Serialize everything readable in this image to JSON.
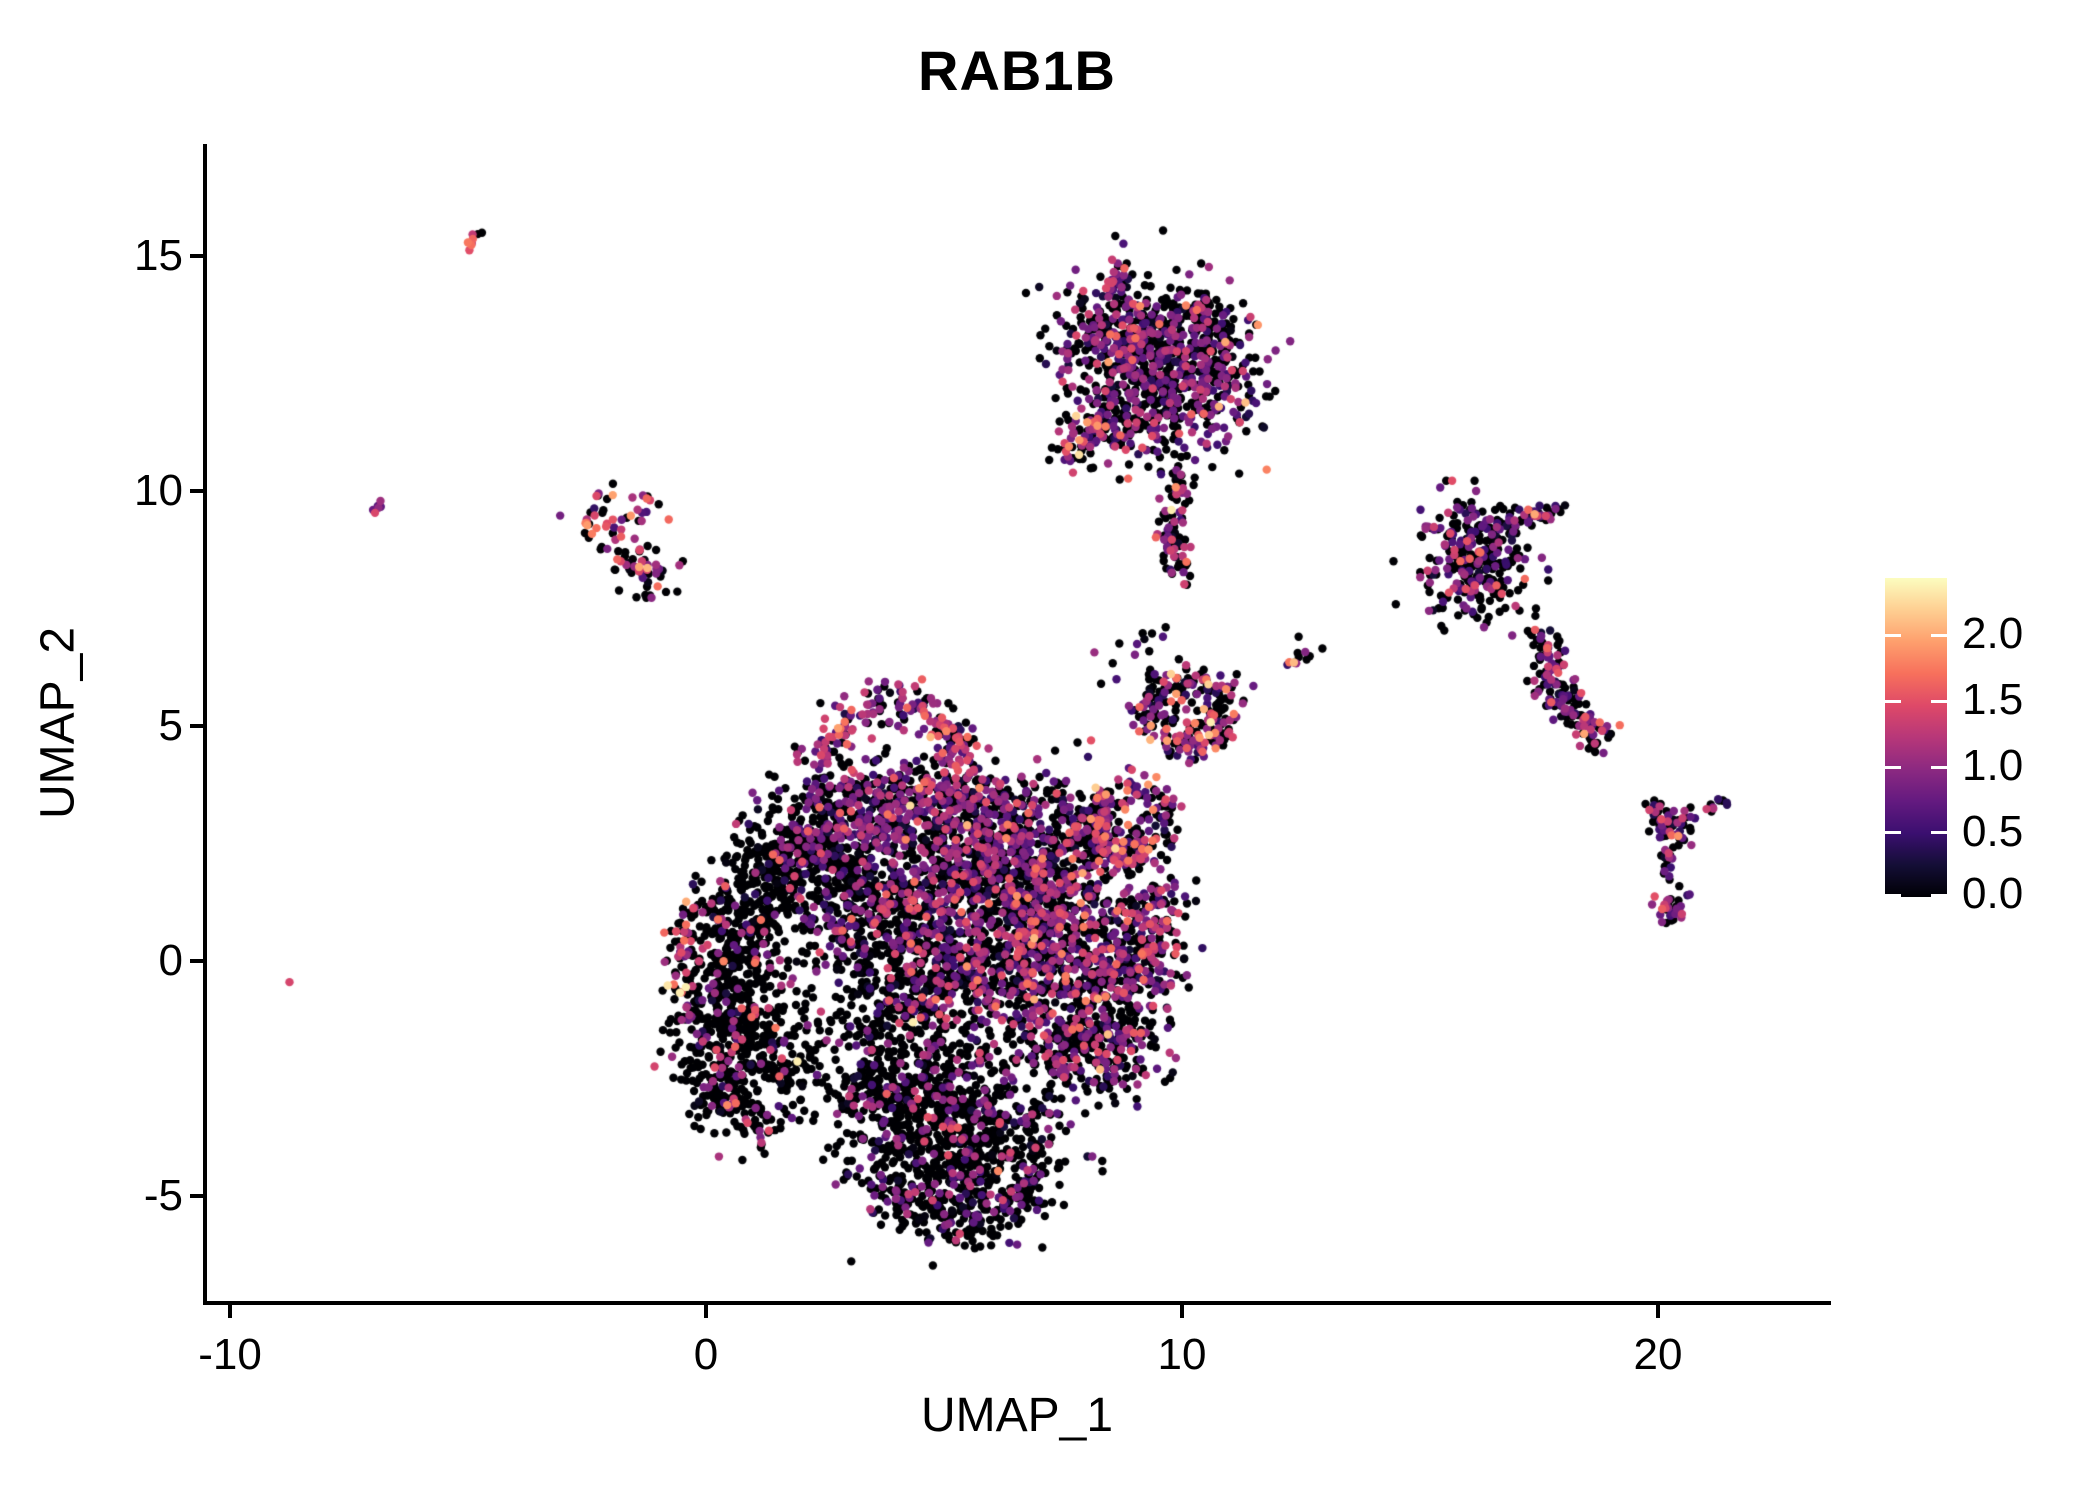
{
  "title": "RAB1B",
  "axes": {
    "x_label": "UMAP_1",
    "y_label": "UMAP_2",
    "x_ticks": [
      "-10",
      "0",
      "10",
      "20"
    ],
    "y_ticks": [
      "15",
      "10",
      "5",
      "0",
      "-5"
    ]
  },
  "legend": {
    "labels": [
      "2.0",
      "1.5",
      "1.0",
      "0.5",
      "0.0"
    ],
    "values": [
      2.0,
      1.5,
      1.0,
      0.5,
      0.0
    ],
    "vmax": 2.43,
    "colormap": "magma",
    "colormap_stops": [
      "#000004",
      "#140e36",
      "#3b0f70",
      "#641a80",
      "#8c2981",
      "#b73779",
      "#de4968",
      "#f7705c",
      "#fe9f6d",
      "#fecf92",
      "#fcfdbf"
    ]
  },
  "chart_data": {
    "type": "scatter",
    "title": "RAB1B",
    "xlabel": "UMAP_1",
    "ylabel": "UMAP_2",
    "xlim": [
      -10.5,
      23.6
    ],
    "ylim": [
      -7.3,
      17.4
    ],
    "x_ticks": [
      -10,
      0,
      10,
      20
    ],
    "y_ticks": [
      -5,
      0,
      5,
      10,
      15
    ],
    "grid": false,
    "legend_position": "right",
    "color_variable": "RAB1B expression",
    "color_range": [
      0,
      2.43
    ],
    "colormap": "magma",
    "point_radius_px": 4.2,
    "seed": 1337,
    "clusters": [
      {
        "name": "left-lobe-core",
        "t": "g",
        "x": 0.35,
        "y": -0.9,
        "sx": 0.5,
        "sy": 1.15,
        "n": 300,
        "p0": 0.87,
        "mu": 0.9,
        "sd": 0.5
      },
      {
        "name": "left-lobe-lower",
        "t": "g",
        "x": 1.15,
        "y": -2.1,
        "sx": 0.65,
        "sy": 0.8,
        "n": 270,
        "p0": 0.87,
        "mu": 0.9,
        "sd": 0.5
      },
      {
        "name": "left-lobe-upper",
        "t": "g",
        "x": 0.8,
        "y": 0.7,
        "sx": 0.55,
        "sy": 0.85,
        "n": 210,
        "p0": 0.83,
        "mu": 0.95,
        "sd": 0.5
      },
      {
        "name": "left-shoulder",
        "t": "g",
        "x": 1.6,
        "y": 1.9,
        "sx": 0.6,
        "sy": 0.55,
        "n": 150,
        "p0": 0.78,
        "mu": 0.85,
        "sd": 0.45
      },
      {
        "name": "left-rim",
        "t": "p",
        "pts": [
          [
            -0.15,
            1.3
          ],
          [
            -0.5,
            0.1
          ],
          [
            -0.35,
            -1.3
          ],
          [
            0.2,
            -2.7
          ],
          [
            1.0,
            -3.6
          ]
        ],
        "j": 0.2,
        "n": 120,
        "p0": 0.45,
        "mu": 1.15,
        "sd": 0.45
      },
      {
        "name": "band-left",
        "t": "g",
        "x": 2.7,
        "y": 3.1,
        "sx": 0.8,
        "sy": 0.6,
        "n": 230,
        "p0": 0.5,
        "mu": 0.8,
        "sd": 0.4
      },
      {
        "name": "band-mid",
        "t": "g",
        "x": 4.3,
        "y": 3.3,
        "sx": 0.9,
        "sy": 0.55,
        "n": 270,
        "p0": 0.45,
        "mu": 0.85,
        "sd": 0.42
      },
      {
        "name": "band-right",
        "t": "g",
        "x": 5.9,
        "y": 3.1,
        "sx": 0.8,
        "sy": 0.6,
        "n": 230,
        "p0": 0.5,
        "mu": 0.85,
        "sd": 0.42
      },
      {
        "name": "dark-patch",
        "t": "g",
        "x": 2.3,
        "y": 2.2,
        "sx": 0.55,
        "sy": 0.5,
        "n": 140,
        "p0": 0.82,
        "mu": 0.8,
        "sd": 0.4
      },
      {
        "name": "top-arc",
        "t": "p",
        "pts": [
          [
            2.3,
            4.4
          ],
          [
            2.9,
            5.1
          ],
          [
            3.8,
            5.5
          ],
          [
            4.7,
            5.3
          ],
          [
            5.25,
            4.7
          ],
          [
            5.3,
            4.15
          ]
        ],
        "j": 0.22,
        "n": 180,
        "p0": 0.3,
        "mu": 1.0,
        "sd": 0.45
      },
      {
        "name": "core-1",
        "t": "g",
        "x": 3.4,
        "y": 0.9,
        "sx": 0.7,
        "sy": 0.9,
        "n": 300,
        "p0": 0.66,
        "mu": 0.8,
        "sd": 0.45
      },
      {
        "name": "core-2",
        "t": "g",
        "x": 4.8,
        "y": 1.6,
        "sx": 0.8,
        "sy": 0.8,
        "n": 300,
        "p0": 0.55,
        "mu": 0.85,
        "sd": 0.45
      },
      {
        "name": "core-3",
        "t": "g",
        "x": 6.2,
        "y": 1.95,
        "sx": 0.7,
        "sy": 0.9,
        "n": 300,
        "p0": 0.5,
        "mu": 0.85,
        "sd": 0.45
      },
      {
        "name": "core-4",
        "t": "g",
        "x": 4.3,
        "y": -0.7,
        "sx": 0.9,
        "sy": 0.8,
        "n": 300,
        "p0": 0.7,
        "mu": 0.8,
        "sd": 0.45
      },
      {
        "name": "core-5",
        "t": "g",
        "x": 5.8,
        "y": -0.3,
        "sx": 0.8,
        "sy": 0.9,
        "n": 300,
        "p0": 0.56,
        "mu": 0.85,
        "sd": 0.45
      },
      {
        "name": "core-6",
        "t": "g",
        "x": 6.95,
        "y": 0.6,
        "sx": 0.55,
        "sy": 1.0,
        "n": 270,
        "p0": 0.45,
        "mu": 0.9,
        "sd": 0.45
      },
      {
        "name": "core-7",
        "t": "g",
        "x": 7.45,
        "y": 2.2,
        "sx": 0.5,
        "sy": 0.8,
        "n": 210,
        "p0": 0.5,
        "mu": 0.9,
        "sd": 0.45
      },
      {
        "name": "bottom-1",
        "t": "g",
        "x": 4.6,
        "y": -3.3,
        "sx": 1.0,
        "sy": 0.7,
        "n": 300,
        "p0": 0.79,
        "mu": 0.8,
        "sd": 0.45
      },
      {
        "name": "bottom-2",
        "t": "g",
        "x": 5.9,
        "y": -3.6,
        "sx": 0.9,
        "sy": 0.7,
        "n": 280,
        "p0": 0.73,
        "mu": 0.8,
        "sd": 0.45
      },
      {
        "name": "bottom-3",
        "t": "g",
        "x": 5.2,
        "y": -4.8,
        "sx": 0.9,
        "sy": 0.6,
        "n": 270,
        "p0": 0.8,
        "mu": 0.75,
        "sd": 0.45
      },
      {
        "name": "bottom-4",
        "t": "g",
        "x": 3.6,
        "y": -2.5,
        "sx": 0.6,
        "sy": 0.6,
        "n": 150,
        "p0": 0.83,
        "mu": 0.8,
        "sd": 0.4
      },
      {
        "name": "bottom-rim",
        "t": "p",
        "pts": [
          [
            3.3,
            -4.2
          ],
          [
            4.2,
            -5.3
          ],
          [
            5.4,
            -5.75
          ],
          [
            6.6,
            -5.2
          ],
          [
            7.0,
            -4.3
          ]
        ],
        "j": 0.2,
        "n": 130,
        "p0": 0.72,
        "mu": 0.7,
        "sd": 0.4
      },
      {
        "name": "right-lobe-1",
        "t": "g",
        "x": 7.8,
        "y": -0.9,
        "sx": 0.7,
        "sy": 0.9,
        "n": 280,
        "p0": 0.6,
        "mu": 0.85,
        "sd": 0.45
      },
      {
        "name": "right-lobe-2",
        "t": "g",
        "x": 8.7,
        "y": -0.2,
        "sx": 0.6,
        "sy": 0.8,
        "n": 230,
        "p0": 0.5,
        "mu": 0.9,
        "sd": 0.45
      },
      {
        "name": "right-lobe-3",
        "t": "g",
        "x": 8.2,
        "y": -2.0,
        "sx": 0.7,
        "sy": 0.55,
        "n": 180,
        "p0": 0.66,
        "mu": 0.8,
        "sd": 0.45
      },
      {
        "name": "right-lobe-4",
        "t": "g",
        "x": 9.35,
        "y": 0.8,
        "sx": 0.45,
        "sy": 0.6,
        "n": 140,
        "p0": 0.52,
        "mu": 0.9,
        "sd": 0.45
      },
      {
        "name": "knob-ring",
        "t": "r",
        "x": 8.9,
        "y": 3.0,
        "r": 0.75,
        "w": 0.45,
        "n": 210,
        "p0": 0.38,
        "mu": 1.05,
        "sd": 0.5
      },
      {
        "name": "knob-inner",
        "t": "g",
        "x": 8.5,
        "y": 2.4,
        "sx": 0.4,
        "sy": 0.4,
        "n": 50,
        "p0": 0.5,
        "mu": 0.9,
        "sd": 0.45
      },
      {
        "name": "ec-ring",
        "t": "r",
        "x": 10.1,
        "y": 5.3,
        "r": 0.8,
        "w": 0.45,
        "n": 210,
        "p0": 0.42,
        "mu": 1.1,
        "sd": 0.55
      },
      {
        "name": "ec-inner",
        "t": "g",
        "x": 10.1,
        "y": 5.3,
        "sx": 0.4,
        "sy": 0.35,
        "n": 30,
        "p0": 0.55,
        "mu": 0.9,
        "sd": 0.5
      },
      {
        "name": "top-main",
        "t": "g",
        "x": 9.4,
        "y": 12.9,
        "sx": 1.05,
        "sy": 0.75,
        "n": 360,
        "p0": 0.52,
        "mu": 0.8,
        "sd": 0.42
      },
      {
        "name": "top-nw",
        "t": "g",
        "x": 8.6,
        "y": 13.55,
        "sx": 0.6,
        "sy": 0.5,
        "n": 160,
        "p0": 0.45,
        "mu": 0.85,
        "sd": 0.45
      },
      {
        "name": "top-se",
        "t": "g",
        "x": 10.35,
        "y": 12.2,
        "sx": 0.7,
        "sy": 0.7,
        "n": 200,
        "p0": 0.5,
        "mu": 0.8,
        "sd": 0.42
      },
      {
        "name": "top-s",
        "t": "g",
        "x": 9.0,
        "y": 11.6,
        "sx": 0.7,
        "sy": 0.6,
        "n": 180,
        "p0": 0.6,
        "mu": 0.8,
        "sd": 0.42
      },
      {
        "name": "top-ne",
        "t": "g",
        "x": 10.25,
        "y": 13.5,
        "sx": 0.5,
        "sy": 0.45,
        "n": 110,
        "p0": 0.55,
        "mu": 0.8,
        "sd": 0.42
      },
      {
        "name": "top-arm",
        "t": "p",
        "pts": [
          [
            7.45,
            10.75
          ],
          [
            7.95,
            11.15
          ],
          [
            8.5,
            11.65
          ]
        ],
        "j": 0.18,
        "n": 70,
        "p0": 0.35,
        "mu": 1.05,
        "sd": 0.5
      },
      {
        "name": "top-spur",
        "t": "p",
        "pts": [
          [
            8.55,
            14.2
          ],
          [
            8.75,
            14.9
          ]
        ],
        "j": 0.1,
        "n": 20,
        "p0": 0.6,
        "mu": 0.9,
        "sd": 0.45
      },
      {
        "name": "top-tail",
        "t": "p",
        "pts": [
          [
            10.0,
            10.4
          ],
          [
            9.85,
            9.6
          ],
          [
            9.8,
            8.8
          ],
          [
            9.9,
            8.15
          ]
        ],
        "j": 0.16,
        "n": 85,
        "p0": 0.55,
        "mu": 0.95,
        "sd": 0.5
      },
      {
        "name": "right1-main",
        "t": "g",
        "x": 16.0,
        "y": 8.9,
        "sx": 0.55,
        "sy": 0.5,
        "n": 150,
        "p0": 0.55,
        "mu": 0.8,
        "sd": 0.42
      },
      {
        "name": "right1-low",
        "t": "g",
        "x": 16.55,
        "y": 8.3,
        "sx": 0.45,
        "sy": 0.5,
        "n": 95,
        "p0": 0.6,
        "mu": 0.8,
        "sd": 0.42
      },
      {
        "name": "right1-arm",
        "t": "p",
        "pts": [
          [
            16.6,
            9.2
          ],
          [
            17.3,
            9.5
          ],
          [
            17.95,
            9.6
          ]
        ],
        "j": 0.12,
        "n": 55,
        "p0": 0.45,
        "mu": 0.9,
        "sd": 0.45
      },
      {
        "name": "right1-tail",
        "t": "g",
        "x": 16.1,
        "y": 7.85,
        "sx": 0.3,
        "sy": 0.3,
        "n": 32,
        "p0": 0.7,
        "mu": 0.8,
        "sd": 0.4
      },
      {
        "name": "right1-sparse",
        "t": "g",
        "x": 15.7,
        "y": 7.5,
        "sx": 0.35,
        "sy": 0.3,
        "n": 12,
        "p0": 0.75,
        "mu": 1.2,
        "sd": 0.5
      },
      {
        "name": "right2-scurve",
        "t": "p",
        "pts": [
          [
            17.5,
            6.85
          ],
          [
            17.8,
            6.35
          ],
          [
            17.65,
            5.85
          ],
          [
            18.1,
            5.4
          ],
          [
            18.6,
            5.0
          ],
          [
            18.9,
            4.65
          ]
        ],
        "j": 0.18,
        "n": 160,
        "p0": 0.4,
        "mu": 0.9,
        "sd": 0.45
      },
      {
        "name": "y-center",
        "t": "g",
        "x": 20.3,
        "y": 2.85,
        "sx": 0.25,
        "sy": 0.2,
        "n": 40,
        "p0": 0.45,
        "mu": 0.85,
        "sd": 0.45
      },
      {
        "name": "y-arm-left",
        "t": "p",
        "pts": [
          [
            19.85,
            3.25
          ],
          [
            20.1,
            3.0
          ]
        ],
        "j": 0.08,
        "n": 12,
        "p0": 0.5,
        "mu": 0.9,
        "sd": 0.45
      },
      {
        "name": "y-arm-right",
        "t": "p",
        "pts": [
          [
            20.65,
            3.15
          ],
          [
            20.45,
            2.95
          ]
        ],
        "j": 0.07,
        "n": 10,
        "p0": 0.5,
        "mu": 1.0,
        "sd": 0.5
      },
      {
        "name": "y-chain",
        "t": "p",
        "pts": [
          [
            20.25,
            2.5
          ],
          [
            20.2,
            2.1
          ],
          [
            20.25,
            1.7
          ]
        ],
        "j": 0.07,
        "n": 16,
        "p0": 0.45,
        "mu": 0.8,
        "sd": 0.4
      },
      {
        "name": "y-foot",
        "t": "g",
        "x": 20.25,
        "y": 1.15,
        "sx": 0.18,
        "sy": 0.2,
        "n": 32,
        "p0": 0.42,
        "mu": 1.1,
        "sd": 0.55
      },
      {
        "name": "y-streak",
        "t": "p",
        "pts": [
          [
            21.05,
            3.2
          ],
          [
            21.5,
            3.5
          ]
        ],
        "j": 0.06,
        "n": 12,
        "p0": 0.5,
        "mu": 0.8,
        "sd": 0.45
      },
      {
        "name": "nw-upper",
        "t": "g",
        "x": -1.9,
        "y": 9.35,
        "sx": 0.38,
        "sy": 0.3,
        "n": 48,
        "p0": 0.42,
        "mu": 1.2,
        "sd": 0.55
      },
      {
        "name": "nw-lower",
        "t": "g",
        "x": -1.25,
        "y": 8.3,
        "sx": 0.32,
        "sy": 0.25,
        "n": 38,
        "p0": 0.35,
        "mu": 0.95,
        "sd": 0.5
      },
      {
        "name": "nw-link",
        "t": "p",
        "pts": [
          [
            -2.3,
            9.0
          ],
          [
            -1.7,
            8.6
          ],
          [
            -1.4,
            8.45
          ]
        ],
        "j": 0.1,
        "n": 10,
        "p0": 0.55,
        "mu": 0.9,
        "sd": 0.45
      },
      {
        "name": "tiny-topleft-streak",
        "t": "p",
        "pts": [
          [
            -5.0,
            15.25
          ],
          [
            -4.65,
            15.55
          ]
        ],
        "j": 0.06,
        "n": 9,
        "p0": 0.35,
        "mu": 1.3,
        "sd": 0.4
      },
      {
        "name": "tiny-pair",
        "t": "p",
        "pts": [
          [
            -6.95,
            9.6
          ],
          [
            -6.8,
            9.8
          ]
        ],
        "j": 0.05,
        "n": 6,
        "p0": 0.4,
        "mu": 1.05,
        "sd": 0.45
      },
      {
        "name": "mid-streak",
        "t": "p",
        "pts": [
          [
            12.2,
            6.3
          ],
          [
            12.7,
            6.6
          ]
        ],
        "j": 0.07,
        "n": 10,
        "p0": 0.5,
        "mu": 1.0,
        "sd": 0.5
      },
      {
        "name": "connectors",
        "t": "g",
        "x": 8.9,
        "y": 6.6,
        "sx": 0.5,
        "sy": 0.5,
        "n": 14,
        "p0": 0.6,
        "mu": 0.9,
        "sd": 0.45
      },
      {
        "name": "singles",
        "t": "s",
        "pts": [
          [
            -8.75,
            -0.45,
            1.4
          ],
          [
            11.5,
            5.85,
            0.75
          ],
          [
            11.15,
            6.1,
            0
          ],
          [
            12.95,
            6.65,
            0
          ],
          [
            12.45,
            6.9,
            0
          ],
          [
            8.3,
            5.9,
            0
          ],
          [
            9.6,
            6.9,
            0.6
          ],
          [
            15.2,
            7.85,
            0
          ],
          [
            16.4,
            7.2,
            0
          ]
        ]
      }
    ]
  }
}
